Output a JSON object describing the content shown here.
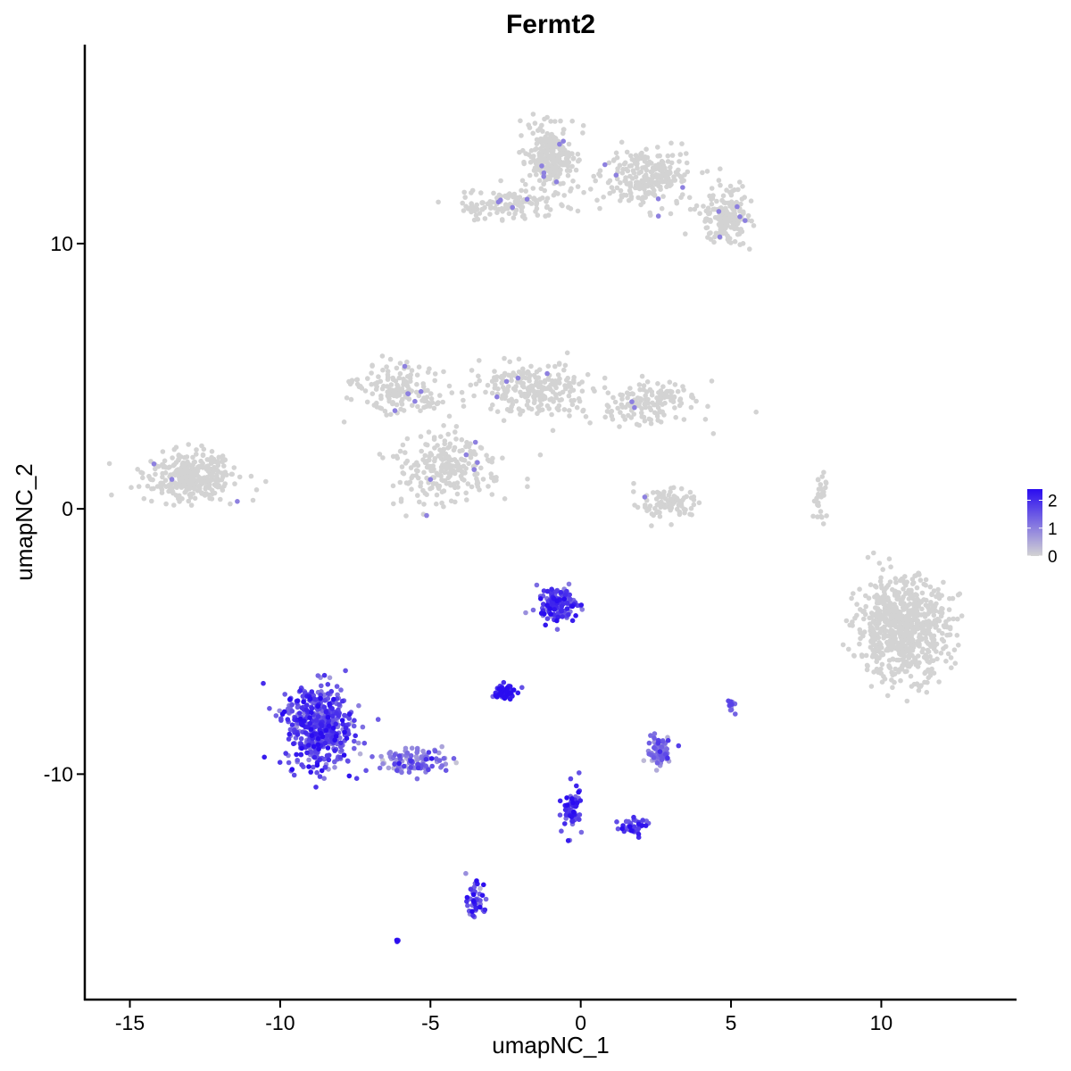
{
  "chart_data": {
    "type": "scatter",
    "title": "Fermt2",
    "xlabel": "umapNC_1",
    "ylabel": "umapNC_2",
    "xlim": [
      -16.5,
      14.5
    ],
    "ylim": [
      -18.5,
      17.5
    ],
    "xticks": [
      -15,
      -10,
      -5,
      0,
      5,
      10
    ],
    "yticks": [
      -10,
      0,
      10
    ],
    "xtick_labels": [
      "-15",
      "-10",
      "-5",
      "0",
      "5",
      "10"
    ],
    "ytick_labels": [
      "-10",
      "0",
      "10"
    ],
    "grid": false,
    "legend": {
      "position": "right",
      "min": 0,
      "max": 2.4,
      "ticks": [
        0,
        1,
        2
      ],
      "tick_labels": [
        "0",
        "1",
        "2"
      ],
      "color_low": "#d3d3d3",
      "color_high": "#2a0cf0"
    },
    "colors": {
      "low": "#d3d3d3",
      "high": "#2a0cf0"
    },
    "clusters": [
      {
        "center": [
          -13,
          1.2
        ],
        "spread": [
          1.4,
          0.8
        ],
        "n": 320,
        "expression": 0.02
      },
      {
        "center": [
          -1.0,
          13.2
        ],
        "spread": [
          0.8,
          1.2
        ],
        "n": 260,
        "expression": 0.02
      },
      {
        "center": [
          2.2,
          12.5
        ],
        "spread": [
          1.3,
          1.0
        ],
        "n": 240,
        "expression": 0.02
      },
      {
        "center": [
          4.8,
          11.0
        ],
        "spread": [
          0.8,
          1.0
        ],
        "n": 180,
        "expression": 0.02
      },
      {
        "center": [
          -2.5,
          11.5
        ],
        "spread": [
          1.6,
          0.6
        ],
        "n": 120,
        "expression": 0.02
      },
      {
        "center": [
          -4.5,
          1.5
        ],
        "spread": [
          1.5,
          1.2
        ],
        "n": 240,
        "expression": 0.02
      },
      {
        "center": [
          -1.5,
          4.5
        ],
        "spread": [
          1.7,
          0.9
        ],
        "n": 240,
        "expression": 0.02
      },
      {
        "center": [
          -6.0,
          4.5
        ],
        "spread": [
          1.5,
          0.8
        ],
        "n": 160,
        "expression": 0.02
      },
      {
        "center": [
          2.3,
          4.0
        ],
        "spread": [
          1.5,
          0.7
        ],
        "n": 150,
        "expression": 0.02
      },
      {
        "center": [
          2.8,
          0.2
        ],
        "spread": [
          0.9,
          0.6
        ],
        "n": 90,
        "expression": 0.02
      },
      {
        "center": [
          8.0,
          0.5
        ],
        "spread": [
          0.25,
          0.8
        ],
        "n": 30,
        "expression": 0.0
      },
      {
        "center": [
          10.7,
          -4.5
        ],
        "spread": [
          1.4,
          1.7
        ],
        "n": 700,
        "expression": 0.0
      },
      {
        "center": [
          -8.7,
          -8.2
        ],
        "spread": [
          1.0,
          1.4
        ],
        "n": 520,
        "expression": 1.6
      },
      {
        "center": [
          -5.5,
          -9.5
        ],
        "spread": [
          1.1,
          0.4
        ],
        "n": 110,
        "expression": 1.1
      },
      {
        "center": [
          -0.8,
          -3.6
        ],
        "spread": [
          0.6,
          0.6
        ],
        "n": 150,
        "expression": 1.7
      },
      {
        "center": [
          -2.5,
          -6.9
        ],
        "spread": [
          0.3,
          0.25
        ],
        "n": 70,
        "expression": 2.0
      },
      {
        "center": [
          2.6,
          -9.1
        ],
        "spread": [
          0.4,
          0.5
        ],
        "n": 90,
        "expression": 1.0
      },
      {
        "center": [
          -3.5,
          -14.8
        ],
        "spread": [
          0.25,
          0.6
        ],
        "n": 45,
        "expression": 1.6
      },
      {
        "center": [
          -0.3,
          -11.3
        ],
        "spread": [
          0.3,
          0.9
        ],
        "n": 60,
        "expression": 1.9
      },
      {
        "center": [
          1.7,
          -12.0
        ],
        "spread": [
          0.5,
          0.3
        ],
        "n": 40,
        "expression": 1.8
      },
      {
        "center": [
          5.0,
          -7.4
        ],
        "spread": [
          0.1,
          0.2
        ],
        "n": 15,
        "expression": 1.2
      },
      {
        "center": [
          -6.1,
          -16.3
        ],
        "spread": [
          0.05,
          0.05
        ],
        "n": 5,
        "expression": 1.9
      }
    ]
  }
}
